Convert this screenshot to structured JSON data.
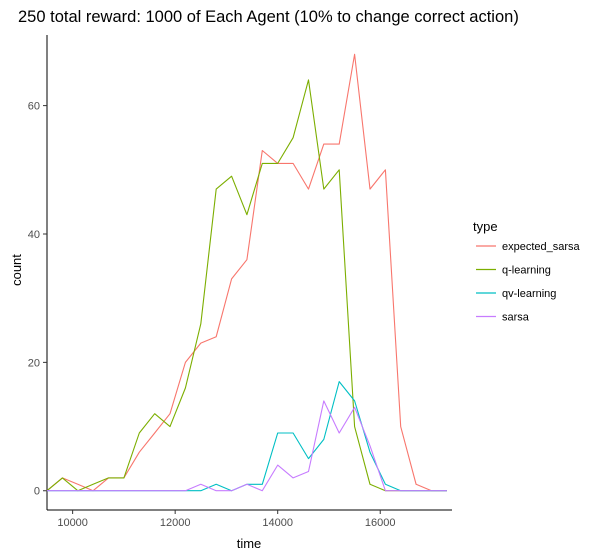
{
  "chart_data": {
    "type": "line",
    "title": "250 total reward: 1000 of Each Agent  (10% to change correct action)",
    "xlabel": "time",
    "ylabel": "count",
    "xlim": [
      9500,
      17400
    ],
    "ylim": [
      -3,
      71
    ],
    "x_ticks": [
      10000,
      12000,
      14000,
      16000
    ],
    "y_ticks": [
      0,
      20,
      40,
      60
    ],
    "grid": false,
    "legend": {
      "title": "type",
      "position": "right"
    },
    "x": [
      9500,
      9800,
      10100,
      10400,
      10700,
      11000,
      11300,
      11600,
      11900,
      12200,
      12500,
      12800,
      13100,
      13400,
      13700,
      14000,
      14300,
      14600,
      14900,
      15200,
      15500,
      15800,
      16100,
      16400,
      16700,
      17000,
      17300
    ],
    "series": [
      {
        "name": "expected_sarsa",
        "color": "#F8766D",
        "values": [
          0,
          2,
          1,
          0,
          2,
          2,
          6,
          9,
          12,
          20,
          23,
          24,
          33,
          36,
          53,
          51,
          51,
          47,
          54,
          54,
          68,
          47,
          50,
          10,
          1,
          0,
          0
        ]
      },
      {
        "name": "q-learning",
        "color": "#7CAE00",
        "values": [
          0,
          2,
          0,
          1,
          2,
          2,
          9,
          12,
          10,
          16,
          26,
          47,
          49,
          43,
          51,
          51,
          55,
          64,
          47,
          50,
          10,
          1,
          0,
          0,
          0,
          0,
          0
        ]
      },
      {
        "name": "qv-learning",
        "color": "#00BFC4",
        "values": [
          0,
          0,
          0,
          0,
          0,
          0,
          0,
          0,
          0,
          0,
          0,
          1,
          0,
          1,
          1,
          9,
          9,
          5,
          8,
          17,
          14,
          6,
          1,
          0,
          0,
          0,
          0
        ]
      },
      {
        "name": "sarsa",
        "color": "#C77CFF",
        "values": [
          0,
          0,
          0,
          0,
          0,
          0,
          0,
          0,
          0,
          0,
          1,
          0,
          0,
          1,
          0,
          4,
          2,
          3,
          14,
          9,
          13,
          7,
          0,
          0,
          0,
          0,
          0
        ]
      }
    ]
  }
}
